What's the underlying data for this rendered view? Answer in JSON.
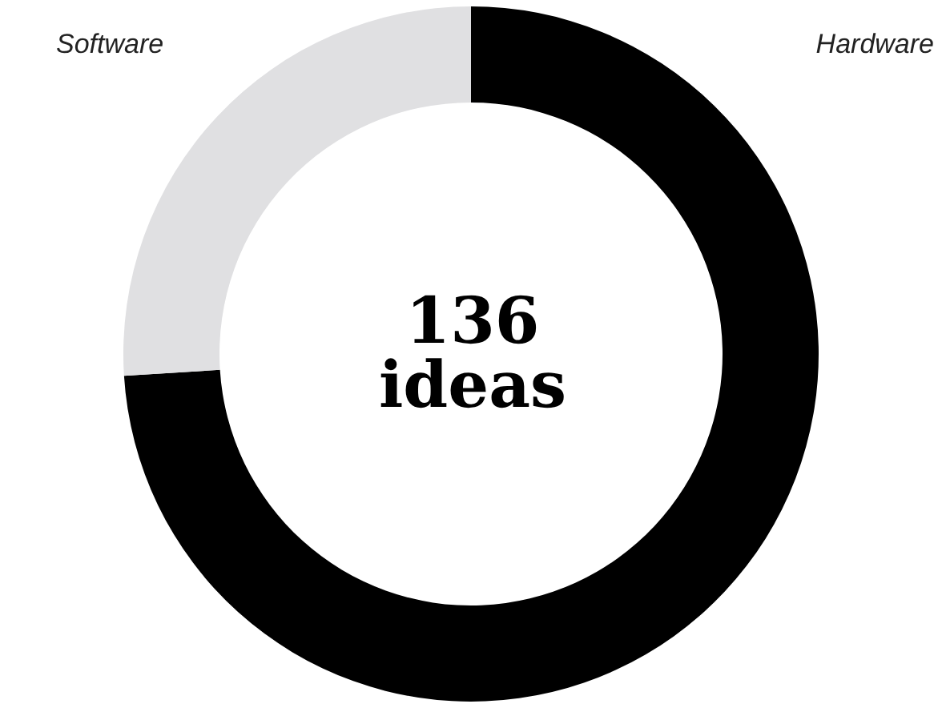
{
  "chart_data": {
    "type": "donut",
    "categories": [
      "Hardware",
      "Software"
    ],
    "values": [
      74,
      26
    ],
    "colors": [
      "#000000",
      "#e0e0e2"
    ],
    "annotations": [
      "136",
      "ideas"
    ]
  }
}
